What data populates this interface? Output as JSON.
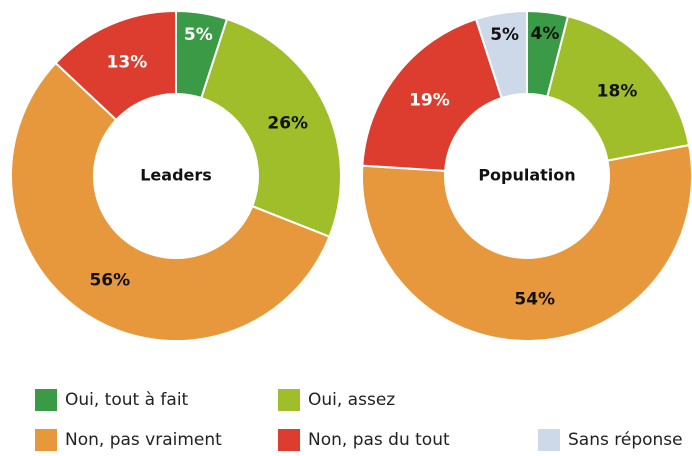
{
  "chart_data": [
    {
      "type": "donut",
      "title": "Leaders",
      "categories": [
        "Oui, tout à fait",
        "Oui, assez",
        "Non, pas vraiment",
        "Non, pas du tout"
      ],
      "values": [
        5,
        26,
        56,
        13
      ],
      "value_labels": [
        "5%",
        "26%",
        "56%",
        "13%"
      ],
      "colors": [
        "#3a9a45",
        "#a0be2a",
        "#e8983c",
        "#dc3d2e"
      ]
    },
    {
      "type": "donut",
      "title": "Population",
      "categories": [
        "Oui, tout à fait",
        "Oui, assez",
        "Non, pas vraiment",
        "Non, pas du tout",
        "Sans réponse"
      ],
      "values": [
        4,
        18,
        54,
        19,
        5
      ],
      "value_labels": [
        "4%",
        "18%",
        "54%",
        "19%",
        "5%"
      ],
      "colors": [
        "#3a9a45",
        "#a0be2a",
        "#e8983c",
        "#dc3d2e",
        "#cdd8e8"
      ]
    }
  ]
}
